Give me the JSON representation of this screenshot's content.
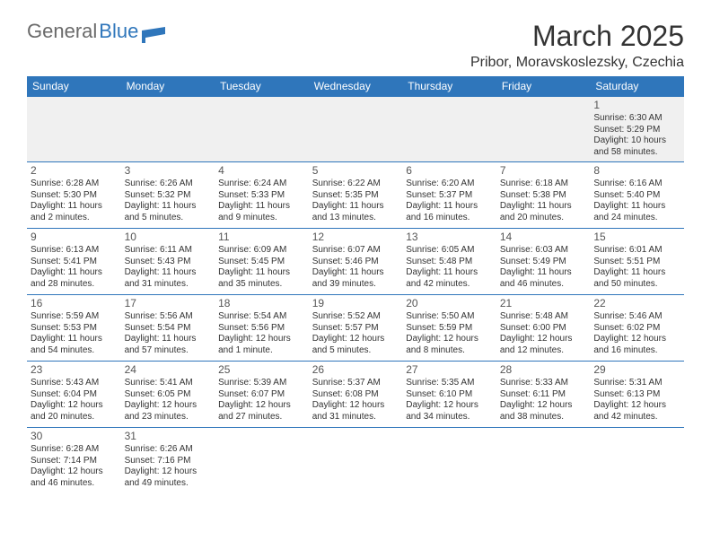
{
  "logo": {
    "text_gray": "General",
    "text_blue": "Blue"
  },
  "title": {
    "month": "March 2025",
    "location": "Pribor, Moravskoslezsky, Czechia"
  },
  "colors": {
    "header_bg": "#2f76bb",
    "header_text": "#ffffff",
    "body_text": "#333333",
    "week1_bg": "#f0f0f0",
    "border": "#2f76bb",
    "logo_gray": "#6a6a6a",
    "logo_blue": "#2f76bb"
  },
  "days_of_week": [
    "Sunday",
    "Monday",
    "Tuesday",
    "Wednesday",
    "Thursday",
    "Friday",
    "Saturday"
  ],
  "weeks": [
    [
      {
        "n": "",
        "sr": "",
        "ss": "",
        "dl": ""
      },
      {
        "n": "",
        "sr": "",
        "ss": "",
        "dl": ""
      },
      {
        "n": "",
        "sr": "",
        "ss": "",
        "dl": ""
      },
      {
        "n": "",
        "sr": "",
        "ss": "",
        "dl": ""
      },
      {
        "n": "",
        "sr": "",
        "ss": "",
        "dl": ""
      },
      {
        "n": "",
        "sr": "",
        "ss": "",
        "dl": ""
      },
      {
        "n": "1",
        "sr": "Sunrise: 6:30 AM",
        "ss": "Sunset: 5:29 PM",
        "dl": "Daylight: 10 hours and 58 minutes."
      }
    ],
    [
      {
        "n": "2",
        "sr": "Sunrise: 6:28 AM",
        "ss": "Sunset: 5:30 PM",
        "dl": "Daylight: 11 hours and 2 minutes."
      },
      {
        "n": "3",
        "sr": "Sunrise: 6:26 AM",
        "ss": "Sunset: 5:32 PM",
        "dl": "Daylight: 11 hours and 5 minutes."
      },
      {
        "n": "4",
        "sr": "Sunrise: 6:24 AM",
        "ss": "Sunset: 5:33 PM",
        "dl": "Daylight: 11 hours and 9 minutes."
      },
      {
        "n": "5",
        "sr": "Sunrise: 6:22 AM",
        "ss": "Sunset: 5:35 PM",
        "dl": "Daylight: 11 hours and 13 minutes."
      },
      {
        "n": "6",
        "sr": "Sunrise: 6:20 AM",
        "ss": "Sunset: 5:37 PM",
        "dl": "Daylight: 11 hours and 16 minutes."
      },
      {
        "n": "7",
        "sr": "Sunrise: 6:18 AM",
        "ss": "Sunset: 5:38 PM",
        "dl": "Daylight: 11 hours and 20 minutes."
      },
      {
        "n": "8",
        "sr": "Sunrise: 6:16 AM",
        "ss": "Sunset: 5:40 PM",
        "dl": "Daylight: 11 hours and 24 minutes."
      }
    ],
    [
      {
        "n": "9",
        "sr": "Sunrise: 6:13 AM",
        "ss": "Sunset: 5:41 PM",
        "dl": "Daylight: 11 hours and 28 minutes."
      },
      {
        "n": "10",
        "sr": "Sunrise: 6:11 AM",
        "ss": "Sunset: 5:43 PM",
        "dl": "Daylight: 11 hours and 31 minutes."
      },
      {
        "n": "11",
        "sr": "Sunrise: 6:09 AM",
        "ss": "Sunset: 5:45 PM",
        "dl": "Daylight: 11 hours and 35 minutes."
      },
      {
        "n": "12",
        "sr": "Sunrise: 6:07 AM",
        "ss": "Sunset: 5:46 PM",
        "dl": "Daylight: 11 hours and 39 minutes."
      },
      {
        "n": "13",
        "sr": "Sunrise: 6:05 AM",
        "ss": "Sunset: 5:48 PM",
        "dl": "Daylight: 11 hours and 42 minutes."
      },
      {
        "n": "14",
        "sr": "Sunrise: 6:03 AM",
        "ss": "Sunset: 5:49 PM",
        "dl": "Daylight: 11 hours and 46 minutes."
      },
      {
        "n": "15",
        "sr": "Sunrise: 6:01 AM",
        "ss": "Sunset: 5:51 PM",
        "dl": "Daylight: 11 hours and 50 minutes."
      }
    ],
    [
      {
        "n": "16",
        "sr": "Sunrise: 5:59 AM",
        "ss": "Sunset: 5:53 PM",
        "dl": "Daylight: 11 hours and 54 minutes."
      },
      {
        "n": "17",
        "sr": "Sunrise: 5:56 AM",
        "ss": "Sunset: 5:54 PM",
        "dl": "Daylight: 11 hours and 57 minutes."
      },
      {
        "n": "18",
        "sr": "Sunrise: 5:54 AM",
        "ss": "Sunset: 5:56 PM",
        "dl": "Daylight: 12 hours and 1 minute."
      },
      {
        "n": "19",
        "sr": "Sunrise: 5:52 AM",
        "ss": "Sunset: 5:57 PM",
        "dl": "Daylight: 12 hours and 5 minutes."
      },
      {
        "n": "20",
        "sr": "Sunrise: 5:50 AM",
        "ss": "Sunset: 5:59 PM",
        "dl": "Daylight: 12 hours and 8 minutes."
      },
      {
        "n": "21",
        "sr": "Sunrise: 5:48 AM",
        "ss": "Sunset: 6:00 PM",
        "dl": "Daylight: 12 hours and 12 minutes."
      },
      {
        "n": "22",
        "sr": "Sunrise: 5:46 AM",
        "ss": "Sunset: 6:02 PM",
        "dl": "Daylight: 12 hours and 16 minutes."
      }
    ],
    [
      {
        "n": "23",
        "sr": "Sunrise: 5:43 AM",
        "ss": "Sunset: 6:04 PM",
        "dl": "Daylight: 12 hours and 20 minutes."
      },
      {
        "n": "24",
        "sr": "Sunrise: 5:41 AM",
        "ss": "Sunset: 6:05 PM",
        "dl": "Daylight: 12 hours and 23 minutes."
      },
      {
        "n": "25",
        "sr": "Sunrise: 5:39 AM",
        "ss": "Sunset: 6:07 PM",
        "dl": "Daylight: 12 hours and 27 minutes."
      },
      {
        "n": "26",
        "sr": "Sunrise: 5:37 AM",
        "ss": "Sunset: 6:08 PM",
        "dl": "Daylight: 12 hours and 31 minutes."
      },
      {
        "n": "27",
        "sr": "Sunrise: 5:35 AM",
        "ss": "Sunset: 6:10 PM",
        "dl": "Daylight: 12 hours and 34 minutes."
      },
      {
        "n": "28",
        "sr": "Sunrise: 5:33 AM",
        "ss": "Sunset: 6:11 PM",
        "dl": "Daylight: 12 hours and 38 minutes."
      },
      {
        "n": "29",
        "sr": "Sunrise: 5:31 AM",
        "ss": "Sunset: 6:13 PM",
        "dl": "Daylight: 12 hours and 42 minutes."
      }
    ],
    [
      {
        "n": "30",
        "sr": "Sunrise: 6:28 AM",
        "ss": "Sunset: 7:14 PM",
        "dl": "Daylight: 12 hours and 46 minutes."
      },
      {
        "n": "31",
        "sr": "Sunrise: 6:26 AM",
        "ss": "Sunset: 7:16 PM",
        "dl": "Daylight: 12 hours and 49 minutes."
      },
      {
        "n": "",
        "sr": "",
        "ss": "",
        "dl": ""
      },
      {
        "n": "",
        "sr": "",
        "ss": "",
        "dl": ""
      },
      {
        "n": "",
        "sr": "",
        "ss": "",
        "dl": ""
      },
      {
        "n": "",
        "sr": "",
        "ss": "",
        "dl": ""
      },
      {
        "n": "",
        "sr": "",
        "ss": "",
        "dl": ""
      }
    ]
  ]
}
